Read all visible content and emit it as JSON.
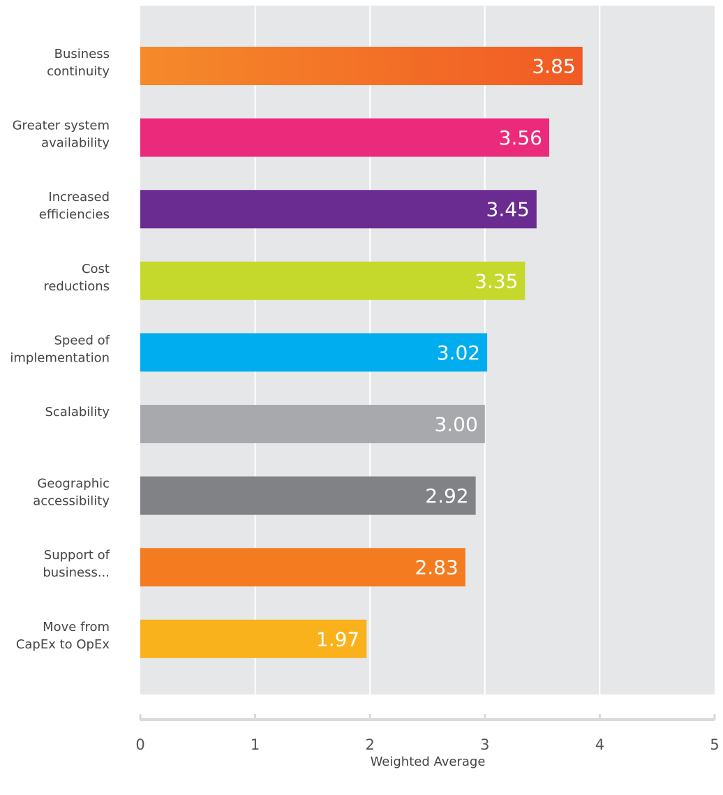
{
  "chart_data": {
    "type": "bar",
    "orientation": "horizontal",
    "categories": [
      [
        "Business",
        "continuity"
      ],
      [
        "Greater system",
        "availability"
      ],
      [
        "Increased",
        "efficiencies"
      ],
      [
        "Cost",
        "reductions"
      ],
      [
        "Speed of",
        "implementation"
      ],
      [
        "Scalability"
      ],
      [
        "Geographic",
        "accessibility"
      ],
      [
        "Support of",
        "business..."
      ],
      [
        "Move from",
        "CapEx to OpEx"
      ]
    ],
    "values": [
      3.85,
      3.56,
      3.45,
      3.35,
      3.02,
      3.0,
      2.92,
      2.83,
      1.97
    ],
    "value_labels": [
      "3.85",
      "3.56",
      "3.45",
      "3.35",
      "3.02",
      "3.00",
      "2.92",
      "2.83",
      "1.97"
    ],
    "colors": [
      "#f26522",
      "#ec2a7b",
      "#6a2c91",
      "#c5d92d",
      "#00aeef",
      "#a7a9ac",
      "#808285",
      "#f47b20",
      "#f9b21b"
    ],
    "xlabel": "Weighted Average",
    "xlim": [
      0,
      5
    ],
    "xticks": [
      "0",
      "1",
      "2",
      "3",
      "4",
      "5"
    ],
    "grid": true,
    "plot_background": "#e6e7e8",
    "axis_color": "#d9dadb"
  }
}
